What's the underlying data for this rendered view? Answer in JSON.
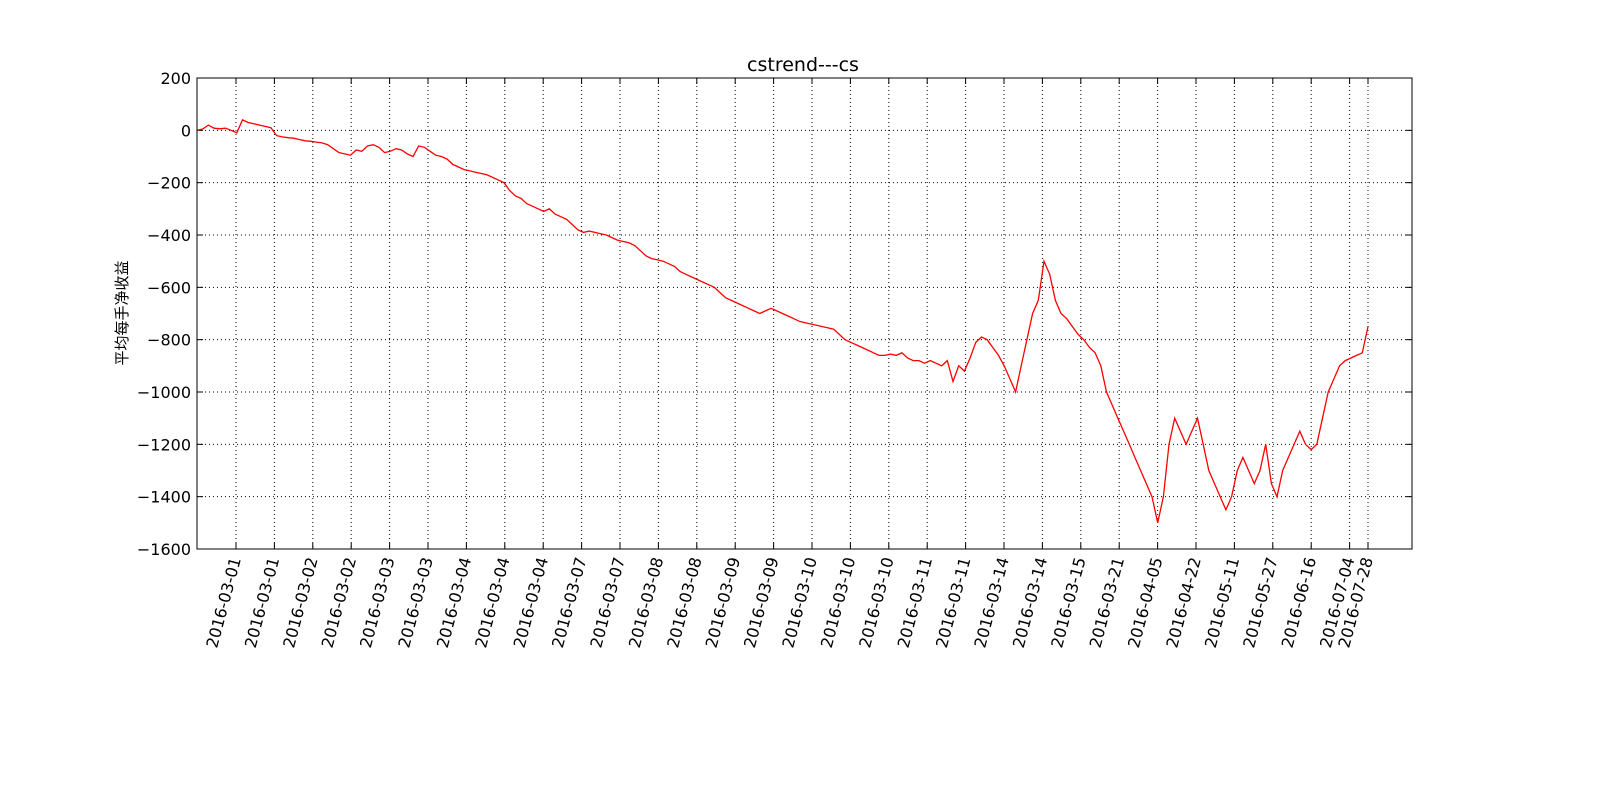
{
  "chart_data": {
    "type": "line",
    "title": "cstrend---cs",
    "xlabel": "",
    "ylabel": "平均每手净收益",
    "ylim": [
      -1600,
      200
    ],
    "yticks": [
      200,
      0,
      -200,
      -400,
      -600,
      -800,
      -1000,
      -1200,
      -1400,
      -1600
    ],
    "ytick_labels": [
      "200",
      "0",
      "−200",
      "−400",
      "−600",
      "−800",
      "−1000",
      "−1200",
      "−1400",
      "−1600"
    ],
    "xtick_labels": [
      "2016-03-01",
      "2016-03-01",
      "2016-03-02",
      "2016-03-02",
      "2016-03-03",
      "2016-03-03",
      "2016-03-04",
      "2016-03-04",
      "2016-03-04",
      "2016-03-07",
      "2016-03-07",
      "2016-03-08",
      "2016-03-08",
      "2016-03-09",
      "2016-03-09",
      "2016-03-10",
      "2016-03-10",
      "2016-03-10",
      "2016-03-11",
      "2016-03-11",
      "2016-03-14",
      "2016-03-14",
      "2016-03-15",
      "2016-03-21",
      "2016-04-05",
      "2016-04-22",
      "2016-05-11",
      "2016-05-27",
      "2016-06-16",
      "2016-07-04",
      "2016-07-28"
    ],
    "grid": true,
    "legend": "none",
    "line_color": "#ff0000",
    "series": [
      {
        "values": [
          0,
          5,
          20,
          8,
          6,
          8,
          0,
          -10,
          40,
          30,
          25,
          20,
          15,
          10,
          -20,
          -25,
          -28,
          -30,
          -35,
          -40,
          -42,
          -45,
          -48,
          -55,
          -70,
          -85,
          -90,
          -95,
          -75,
          -80,
          -60,
          -55,
          -65,
          -85,
          -80,
          -70,
          -75,
          -90,
          -100,
          -60,
          -65,
          -80,
          -95,
          -100,
          -110,
          -130,
          -140,
          -150,
          -155,
          -160,
          -165,
          -170,
          -180,
          -190,
          -200,
          -230,
          -250,
          -260,
          -280,
          -290,
          -300,
          -310,
          -300,
          -320,
          -330,
          -340,
          -360,
          -380,
          -390,
          -385,
          -390,
          -395,
          -400,
          -410,
          -420,
          -425,
          -430,
          -440,
          -460,
          -480,
          -490,
          -495,
          -500,
          -510,
          -520,
          -540,
          -550,
          -560,
          -570,
          -580,
          -590,
          -600,
          -620,
          -640,
          -650,
          -660,
          -670,
          -680,
          -690,
          -700,
          -690,
          -680,
          -690,
          -700,
          -710,
          -720,
          -730,
          -735,
          -740,
          -745,
          -750,
          -755,
          -760,
          -780,
          -800,
          -810,
          -820,
          -830,
          -840,
          -850,
          -860,
          -860,
          -855,
          -860,
          -850,
          -870,
          -880,
          -880,
          -890,
          -880,
          -890,
          -900,
          -880,
          -960,
          -900,
          -920,
          -870,
          -810,
          -790,
          -800,
          -830,
          -860,
          -900,
          -950,
          -1000,
          -900,
          -800,
          -700,
          -650,
          -500,
          -550,
          -650,
          -700,
          -720,
          -750,
          -780,
          -800,
          -830,
          -850,
          -900,
          -1000,
          -1050,
          -1100,
          -1150,
          -1200,
          -1250,
          -1300,
          -1350,
          -1400,
          -1500,
          -1400,
          -1200,
          -1100,
          -1150,
          -1200,
          -1150,
          -1100,
          -1200,
          -1300,
          -1350,
          -1400,
          -1450,
          -1400,
          -1300,
          -1250,
          -1300,
          -1350,
          -1300,
          -1200,
          -1350,
          -1400,
          -1300,
          -1250,
          -1200,
          -1150,
          -1200,
          -1220,
          -1200,
          -1100,
          -1000,
          -950,
          -900,
          -880,
          -870,
          -860,
          -850,
          -750
        ]
      }
    ]
  }
}
